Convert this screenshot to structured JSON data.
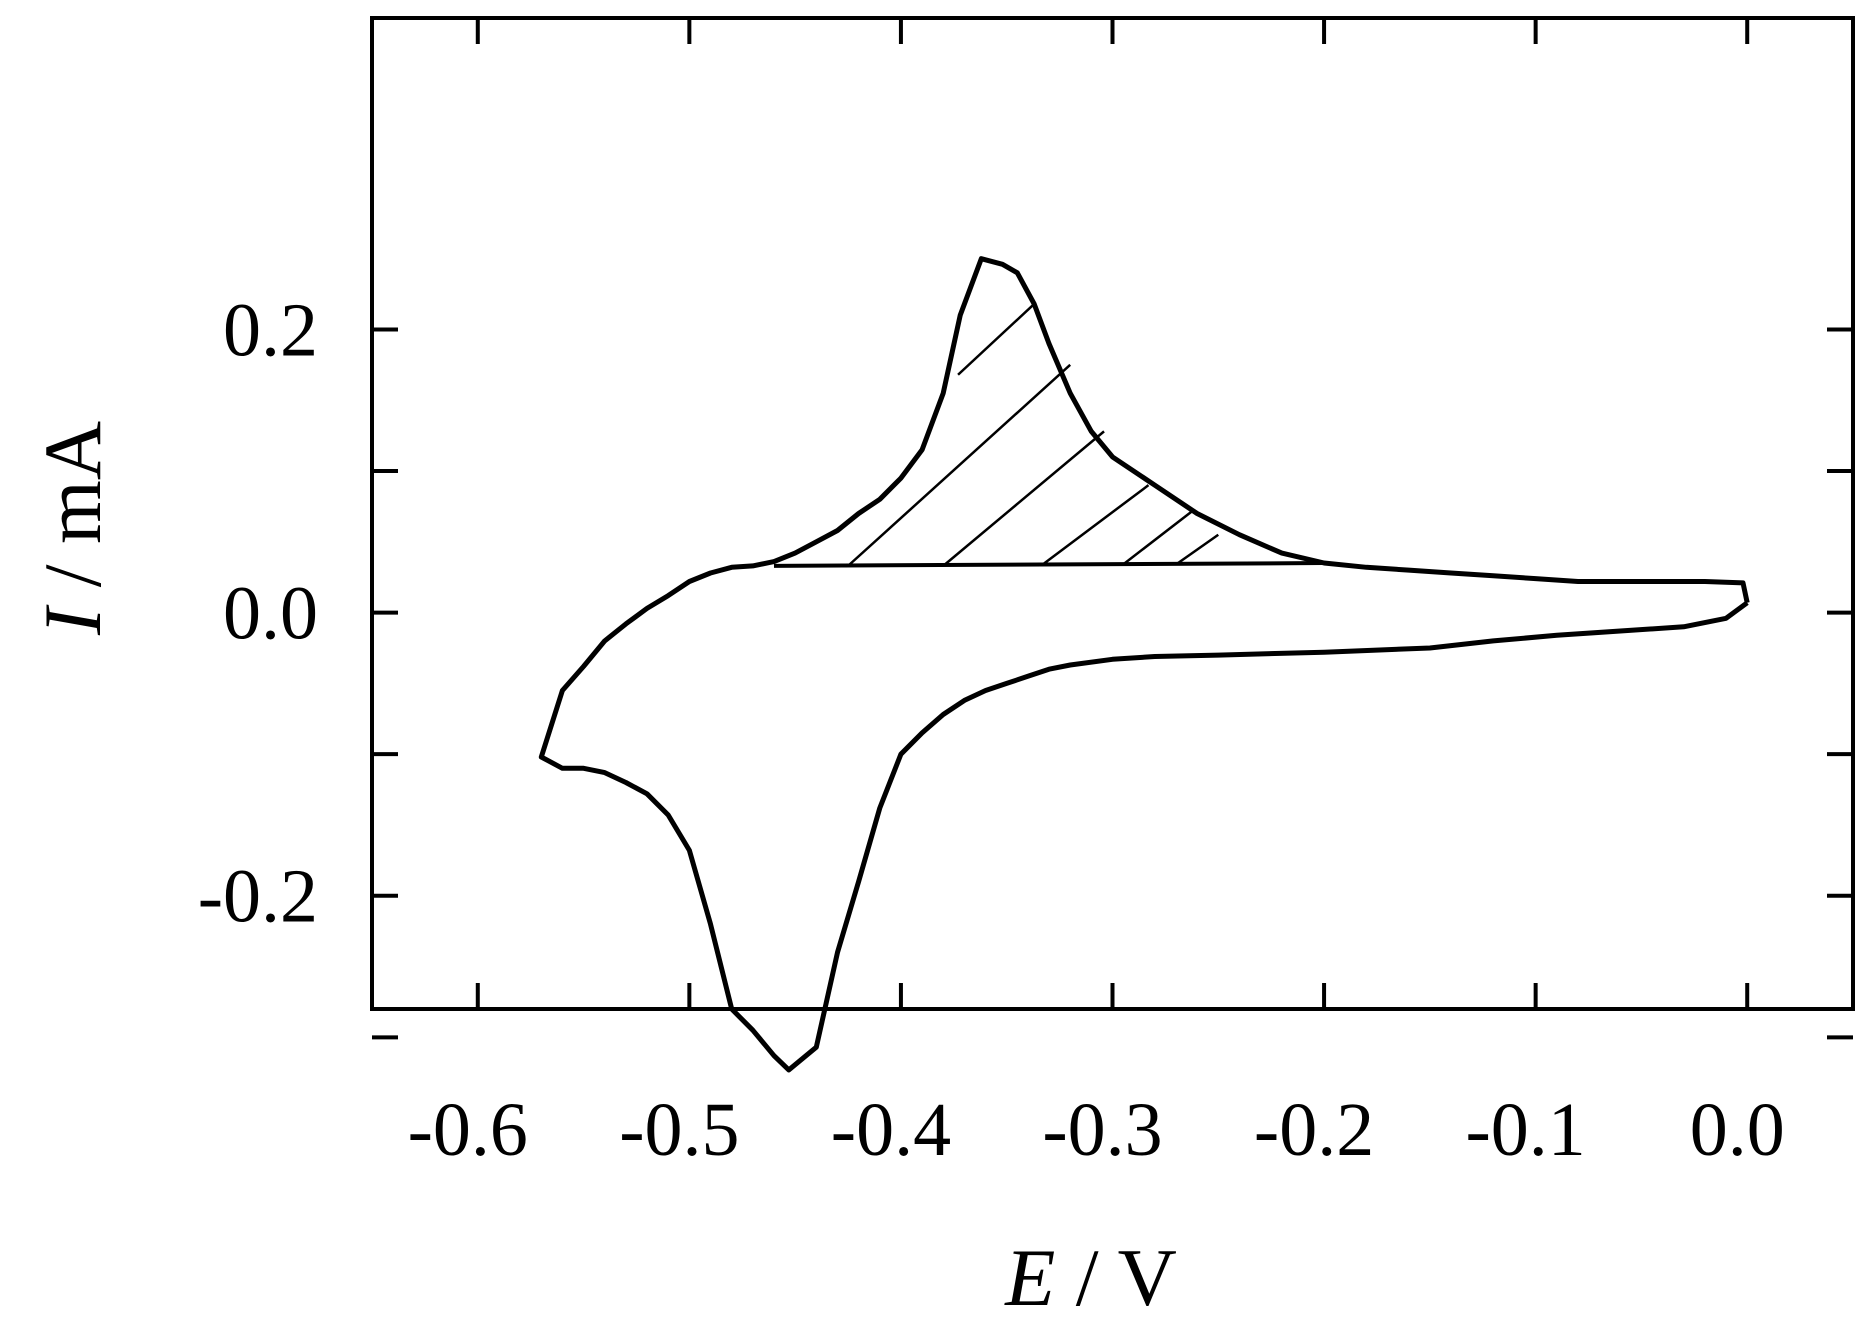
{
  "chart_data": {
    "type": "line",
    "title": "",
    "xlabel": {
      "symbol": "E",
      "unit": " / V"
    },
    "ylabel": {
      "symbol": "I",
      "unit": " / mA"
    },
    "xlim": [
      -0.65,
      0.05
    ],
    "ylim": [
      -0.28,
      0.42
    ],
    "x_ticks": [
      -0.6,
      -0.5,
      -0.4,
      -0.3,
      -0.2,
      -0.1,
      0.0
    ],
    "x_tick_labels": [
      "-0.6",
      "-0.5",
      "-0.4",
      "-0.3",
      "-0.2",
      "-0.1",
      "0.0"
    ],
    "y_ticks": [
      -0.3,
      -0.2,
      -0.1,
      0.0,
      0.1,
      0.2
    ],
    "y_tick_labels": [
      "",
      "-0.2",
      "",
      "0.0",
      "",
      "0.2"
    ],
    "grid": false,
    "legend": "none",
    "series": [
      {
        "points": [
          [
            0.0,
            0.007
          ],
          [
            -0.002,
            0.021
          ],
          [
            -0.02,
            0.022
          ],
          [
            -0.05,
            0.022
          ],
          [
            -0.08,
            0.022
          ],
          [
            -0.1,
            0.024
          ],
          [
            -0.12,
            0.026
          ],
          [
            -0.14,
            0.028
          ],
          [
            -0.16,
            0.03
          ],
          [
            -0.18,
            0.032
          ],
          [
            -0.2,
            0.035
          ],
          [
            -0.22,
            0.042
          ],
          [
            -0.24,
            0.055
          ],
          [
            -0.26,
            0.07
          ],
          [
            -0.28,
            0.09
          ],
          [
            -0.3,
            0.11
          ],
          [
            -0.31,
            0.128
          ],
          [
            -0.32,
            0.155
          ],
          [
            -0.33,
            0.19
          ],
          [
            -0.337,
            0.218
          ],
          [
            -0.345,
            0.24
          ],
          [
            -0.352,
            0.246
          ],
          [
            -0.362,
            0.25
          ],
          [
            -0.372,
            0.21
          ],
          [
            -0.38,
            0.155
          ],
          [
            -0.39,
            0.115
          ],
          [
            -0.4,
            0.095
          ],
          [
            -0.41,
            0.08
          ],
          [
            -0.42,
            0.07
          ],
          [
            -0.43,
            0.058
          ],
          [
            -0.44,
            0.05
          ],
          [
            -0.45,
            0.042
          ],
          [
            -0.46,
            0.036
          ],
          [
            -0.47,
            0.033
          ],
          [
            -0.48,
            0.032
          ],
          [
            -0.49,
            0.028
          ],
          [
            -0.5,
            0.022
          ],
          [
            -0.51,
            0.012
          ],
          [
            -0.52,
            0.003
          ],
          [
            -0.53,
            -0.008
          ],
          [
            -0.54,
            -0.02
          ],
          [
            -0.55,
            -0.038
          ],
          [
            -0.56,
            -0.055
          ],
          [
            -0.57,
            -0.102
          ],
          [
            -0.56,
            -0.11
          ],
          [
            -0.55,
            -0.11
          ],
          [
            -0.54,
            -0.113
          ],
          [
            -0.53,
            -0.12
          ],
          [
            -0.52,
            -0.128
          ],
          [
            -0.51,
            -0.143
          ],
          [
            -0.5,
            -0.168
          ],
          [
            -0.49,
            -0.22
          ],
          [
            -0.48,
            -0.28
          ],
          [
            -0.47,
            -0.295
          ],
          [
            -0.46,
            -0.313
          ],
          [
            -0.453,
            -0.323
          ],
          [
            -0.44,
            -0.307
          ],
          [
            -0.43,
            -0.24
          ],
          [
            -0.42,
            -0.19
          ],
          [
            -0.41,
            -0.138
          ],
          [
            -0.4,
            -0.1
          ],
          [
            -0.39,
            -0.085
          ],
          [
            -0.38,
            -0.072
          ],
          [
            -0.37,
            -0.062
          ],
          [
            -0.36,
            -0.055
          ],
          [
            -0.35,
            -0.05
          ],
          [
            -0.34,
            -0.045
          ],
          [
            -0.33,
            -0.04
          ],
          [
            -0.32,
            -0.037
          ],
          [
            -0.3,
            -0.033
          ],
          [
            -0.28,
            -0.031
          ],
          [
            -0.25,
            -0.03
          ],
          [
            -0.2,
            -0.028
          ],
          [
            -0.15,
            -0.025
          ],
          [
            -0.12,
            -0.02
          ],
          [
            -0.09,
            -0.016
          ],
          [
            -0.06,
            -0.013
          ],
          [
            -0.03,
            -0.01
          ],
          [
            -0.01,
            -0.004
          ],
          [
            0.0,
            0.007
          ]
        ]
      }
    ],
    "shaded_region": {
      "style": "hatched",
      "baseline": {
        "from": [
          -0.46,
          0.033
        ],
        "to": [
          -0.2,
          0.035
        ]
      },
      "hatch_lines": [
        [
          [
            -0.373,
            0.168
          ],
          [
            -0.337,
            0.218
          ]
        ],
        [
          [
            -0.425,
            0.033
          ],
          [
            -0.32,
            0.175
          ]
        ],
        [
          [
            -0.38,
            0.033
          ],
          [
            -0.304,
            0.128
          ]
        ],
        [
          [
            -0.333,
            0.034
          ],
          [
            -0.283,
            0.09
          ]
        ],
        [
          [
            -0.295,
            0.034
          ],
          [
            -0.262,
            0.072
          ]
        ],
        [
          [
            -0.27,
            0.034
          ],
          [
            -0.25,
            0.055
          ]
        ]
      ]
    }
  }
}
